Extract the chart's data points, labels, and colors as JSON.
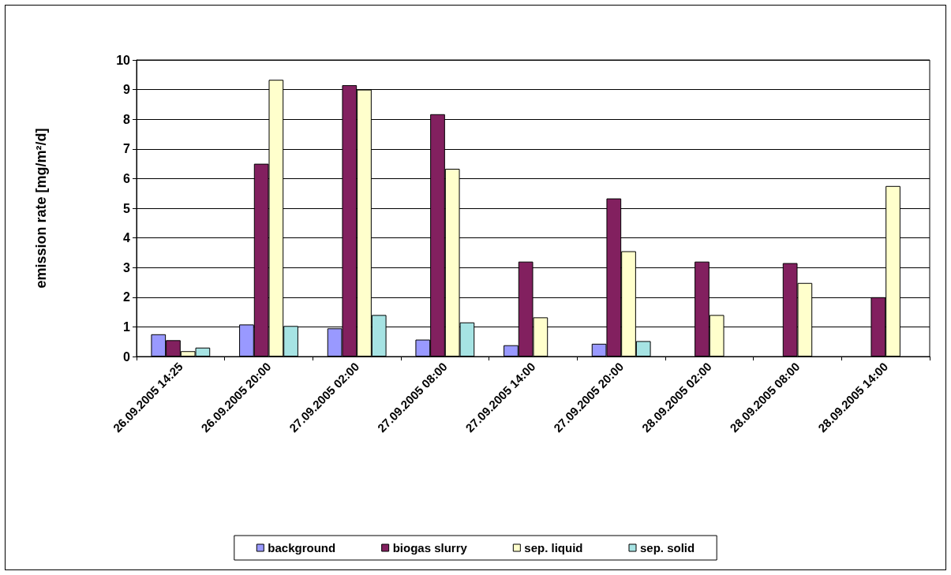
{
  "chart_data": {
    "type": "bar",
    "ylabel": "emission rate [mg/m²/d]",
    "categories": [
      "26.09.2005 14:25",
      "26.09.2005 20:00",
      "27.09.2005 02:00",
      "27.09.2005 08:00",
      "27.09.2005 14:00",
      "27.09.2005 20:00",
      "28.09.2005 02:00",
      "28.09.2005 08:00",
      "28.09.2005 14:00"
    ],
    "series": [
      {
        "name": "background",
        "color": "#9999ff",
        "values": [
          0.75,
          1.08,
          0.95,
          0.57,
          0.38,
          0.43,
          null,
          null,
          null
        ]
      },
      {
        "name": "biogas slurry",
        "color": "#82205f",
        "values": [
          0.55,
          6.5,
          9.15,
          8.17,
          3.2,
          5.33,
          3.2,
          3.15,
          2.0
        ]
      },
      {
        "name": "sep. liquid",
        "color": "#ffffcc",
        "values": [
          0.18,
          9.33,
          9.0,
          6.33,
          1.32,
          3.55,
          1.4,
          2.48,
          5.75
        ]
      },
      {
        "name": "sep. solid",
        "color": "#a6e3e3",
        "values": [
          0.3,
          1.03,
          1.4,
          1.15,
          null,
          0.52,
          null,
          null,
          null
        ]
      }
    ],
    "ylim": [
      0,
      10
    ],
    "yticks": [
      0,
      1,
      2,
      3,
      4,
      5,
      6,
      7,
      8,
      9,
      10
    ],
    "grid": "y",
    "legend": "bottom"
  }
}
